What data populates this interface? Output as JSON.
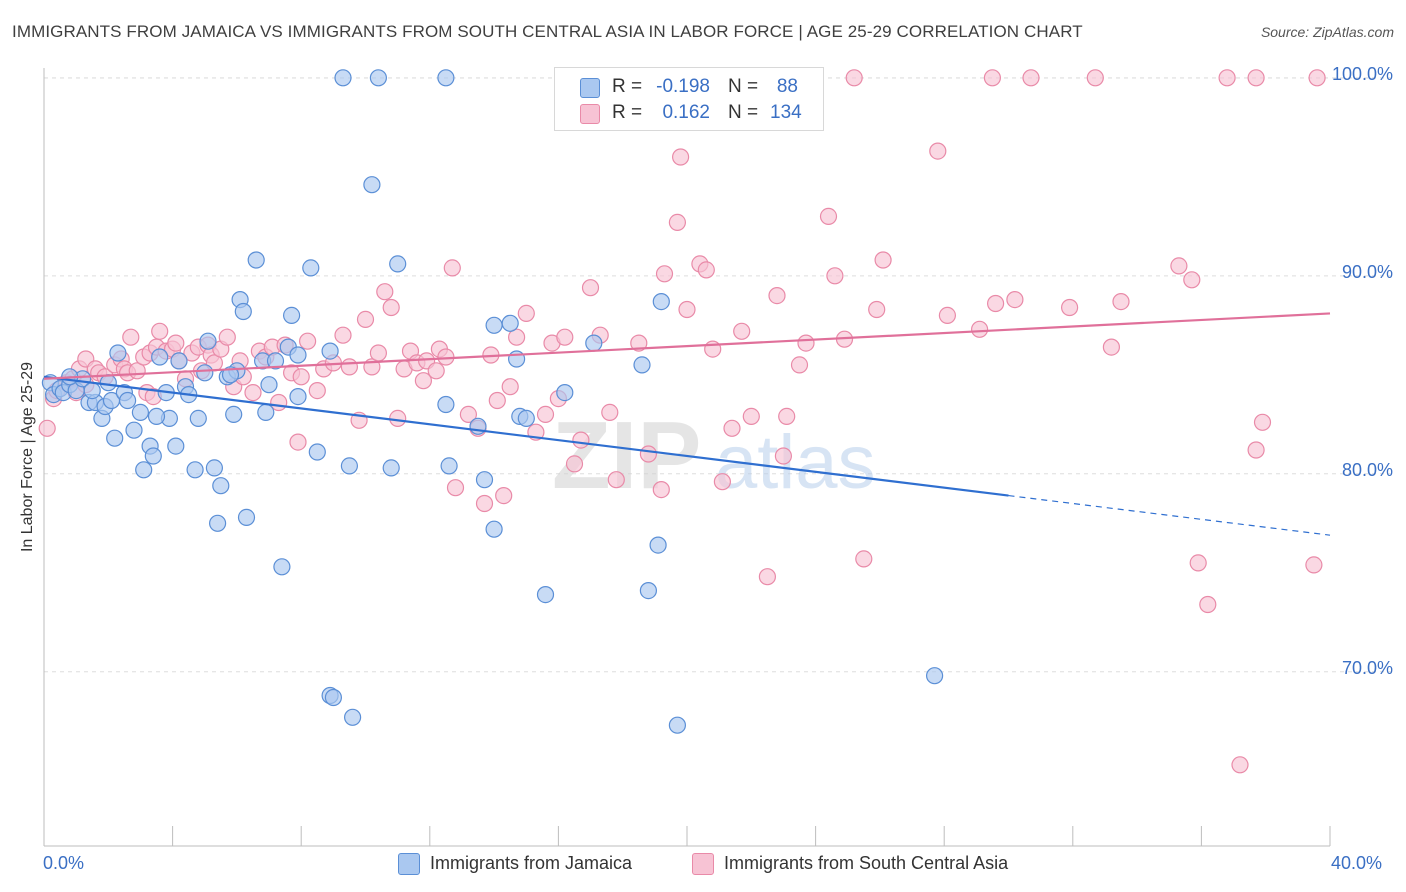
{
  "title": "IMMIGRANTS FROM JAMAICA VS IMMIGRANTS FROM SOUTH CENTRAL ASIA IN LABOR FORCE | AGE 25-29 CORRELATION CHART",
  "source": "Source: ZipAtlas.com",
  "watermark": {
    "zip": "ZIP",
    "atlas": "atlas"
  },
  "legend": {
    "r_label": "R =",
    "n_label": "N =",
    "rows": [
      {
        "r": "-0.198",
        "n": "88"
      },
      {
        "r": "0.162",
        "n": "134"
      }
    ]
  },
  "colors": {
    "blue_fill": "#aac8f0",
    "blue_stroke": "#5b8fd6",
    "blue_line": "#2f6fd0",
    "pink_fill": "#f7c3d4",
    "pink_stroke": "#e98aa8",
    "pink_line": "#e0709a",
    "tick_text": "#3a6fc4",
    "grid": "#dddddd"
  },
  "chart_data": {
    "type": "scatter",
    "title": "IMMIGRANTS FROM JAMAICA VS IMMIGRANTS FROM SOUTH CENTRAL ASIA IN LABOR FORCE | AGE 25-29 CORRELATION CHART",
    "xlabel": "",
    "ylabel": "In Labor Force | Age 25-29",
    "xlim": [
      0,
      40
    ],
    "ylim": [
      61.2,
      100.8
    ],
    "x_tick_labels": [
      "0.0%",
      "40.0%"
    ],
    "y_ticks": [
      70,
      80,
      90,
      100
    ],
    "y_tick_labels": [
      "70.0%",
      "80.0%",
      "90.0%",
      "100.0%"
    ],
    "grid": true,
    "legend_position": "top-center",
    "series": [
      {
        "name": "Immigrants from Jamaica",
        "color": "#aac8f0",
        "r": -0.198,
        "n": 88,
        "trend": {
          "x0": 0,
          "y0": 84.9,
          "x1": 30,
          "y1": 78.9,
          "dashed_to_x": 40,
          "dashed_to_y": 76.9
        },
        "points": [
          [
            0.2,
            84.6
          ],
          [
            0.3,
            84.0
          ],
          [
            0.5,
            84.3
          ],
          [
            0.6,
            84.1
          ],
          [
            0.8,
            84.5
          ],
          [
            1.0,
            84.2
          ],
          [
            1.2,
            84.8
          ],
          [
            1.4,
            83.6
          ],
          [
            1.6,
            83.6
          ],
          [
            1.8,
            82.8
          ],
          [
            1.9,
            83.4
          ],
          [
            2.1,
            83.7
          ],
          [
            2.2,
            81.8
          ],
          [
            2.3,
            86.1
          ],
          [
            2.5,
            84.1
          ],
          [
            2.6,
            83.7
          ],
          [
            2.8,
            82.2
          ],
          [
            3.0,
            83.1
          ],
          [
            3.1,
            80.2
          ],
          [
            3.3,
            81.4
          ],
          [
            3.4,
            80.9
          ],
          [
            3.6,
            85.9
          ],
          [
            3.8,
            84.1
          ],
          [
            3.9,
            82.8
          ],
          [
            4.1,
            81.4
          ],
          [
            4.2,
            85.7
          ],
          [
            4.4,
            84.4
          ],
          [
            4.5,
            84.0
          ],
          [
            4.7,
            80.2
          ],
          [
            4.8,
            82.8
          ],
          [
            5.0,
            85.1
          ],
          [
            5.1,
            86.7
          ],
          [
            5.3,
            80.3
          ],
          [
            5.4,
            77.5
          ],
          [
            5.5,
            79.4
          ],
          [
            5.7,
            84.9
          ],
          [
            5.9,
            83.0
          ],
          [
            6.0,
            85.2
          ],
          [
            6.1,
            88.8
          ],
          [
            6.2,
            88.2
          ],
          [
            6.3,
            77.8
          ],
          [
            6.6,
            90.8
          ],
          [
            6.8,
            85.7
          ],
          [
            6.9,
            83.1
          ],
          [
            7.0,
            84.5
          ],
          [
            7.2,
            85.7
          ],
          [
            7.4,
            75.3
          ],
          [
            7.6,
            86.4
          ],
          [
            7.7,
            88.0
          ],
          [
            7.9,
            86.0
          ],
          [
            7.9,
            83.9
          ],
          [
            8.3,
            90.4
          ],
          [
            8.5,
            81.1
          ],
          [
            8.9,
            68.8
          ],
          [
            8.9,
            86.2
          ],
          [
            9.0,
            68.7
          ],
          [
            9.3,
            100.0
          ],
          [
            9.5,
            80.4
          ],
          [
            9.6,
            67.7
          ],
          [
            10.2,
            94.6
          ],
          [
            10.4,
            100.0
          ],
          [
            10.8,
            80.3
          ],
          [
            11.0,
            90.6
          ],
          [
            12.5,
            100.0
          ],
          [
            12.5,
            83.5
          ],
          [
            12.6,
            80.4
          ],
          [
            13.5,
            82.4
          ],
          [
            13.7,
            79.7
          ],
          [
            14.0,
            87.5
          ],
          [
            14.0,
            77.2
          ],
          [
            14.5,
            87.6
          ],
          [
            14.7,
            85.8
          ],
          [
            14.8,
            82.9
          ],
          [
            15.0,
            82.8
          ],
          [
            15.6,
            73.9
          ],
          [
            16.2,
            84.1
          ],
          [
            17.1,
            86.6
          ],
          [
            18.6,
            85.5
          ],
          [
            18.8,
            74.1
          ],
          [
            19.1,
            76.4
          ],
          [
            19.2,
            88.7
          ],
          [
            19.7,
            67.3
          ],
          [
            27.7,
            69.8
          ],
          [
            2.0,
            84.6
          ],
          [
            0.8,
            84.9
          ],
          [
            3.5,
            82.9
          ],
          [
            5.8,
            85.0
          ],
          [
            1.5,
            84.2
          ]
        ]
      },
      {
        "name": "Immigrants from South Central Asia",
        "color": "#f7c3d4",
        "r": 0.162,
        "n": 134,
        "trend": {
          "x0": 0,
          "y0": 84.8,
          "x1": 40,
          "y1": 88.1
        },
        "points": [
          [
            0.1,
            82.3
          ],
          [
            0.3,
            83.8
          ],
          [
            0.4,
            84.2
          ],
          [
            0.7,
            84.6
          ],
          [
            0.9,
            84.8
          ],
          [
            1.0,
            84.1
          ],
          [
            1.1,
            85.3
          ],
          [
            1.3,
            84.5
          ],
          [
            1.3,
            85.8
          ],
          [
            1.6,
            85.3
          ],
          [
            1.7,
            85.1
          ],
          [
            1.9,
            84.9
          ],
          [
            2.2,
            85.5
          ],
          [
            2.4,
            85.8
          ],
          [
            2.5,
            85.3
          ],
          [
            2.6,
            85.1
          ],
          [
            2.7,
            86.9
          ],
          [
            2.9,
            85.2
          ],
          [
            3.1,
            85.9
          ],
          [
            3.2,
            84.1
          ],
          [
            3.3,
            86.1
          ],
          [
            3.4,
            83.9
          ],
          [
            3.5,
            86.4
          ],
          [
            3.6,
            87.2
          ],
          [
            3.8,
            86.2
          ],
          [
            4.0,
            86.3
          ],
          [
            4.1,
            86.6
          ],
          [
            4.2,
            85.7
          ],
          [
            4.4,
            84.8
          ],
          [
            4.6,
            86.1
          ],
          [
            4.8,
            86.4
          ],
          [
            4.9,
            85.2
          ],
          [
            5.1,
            86.5
          ],
          [
            5.2,
            86.0
          ],
          [
            5.3,
            85.6
          ],
          [
            5.5,
            86.3
          ],
          [
            5.7,
            86.9
          ],
          [
            5.9,
            84.4
          ],
          [
            6.1,
            85.7
          ],
          [
            6.2,
            84.9
          ],
          [
            6.5,
            84.1
          ],
          [
            6.7,
            86.2
          ],
          [
            6.9,
            85.9
          ],
          [
            7.1,
            86.4
          ],
          [
            7.3,
            83.6
          ],
          [
            7.5,
            86.5
          ],
          [
            7.7,
            85.1
          ],
          [
            7.9,
            81.6
          ],
          [
            8.0,
            84.9
          ],
          [
            8.2,
            86.7
          ],
          [
            8.5,
            84.2
          ],
          [
            8.7,
            85.3
          ],
          [
            9.0,
            85.6
          ],
          [
            9.3,
            87.0
          ],
          [
            9.5,
            85.4
          ],
          [
            9.8,
            82.7
          ],
          [
            10.0,
            87.8
          ],
          [
            10.2,
            85.4
          ],
          [
            10.4,
            86.1
          ],
          [
            10.6,
            89.2
          ],
          [
            10.8,
            88.4
          ],
          [
            11.0,
            82.8
          ],
          [
            11.2,
            85.3
          ],
          [
            11.4,
            86.2
          ],
          [
            11.6,
            85.6
          ],
          [
            11.8,
            84.7
          ],
          [
            11.9,
            85.7
          ],
          [
            12.2,
            85.2
          ],
          [
            12.3,
            86.3
          ],
          [
            12.5,
            85.9
          ],
          [
            12.7,
            90.4
          ],
          [
            12.8,
            79.3
          ],
          [
            13.2,
            83.0
          ],
          [
            13.5,
            82.3
          ],
          [
            13.7,
            78.5
          ],
          [
            13.9,
            86.0
          ],
          [
            14.1,
            83.7
          ],
          [
            14.3,
            78.9
          ],
          [
            14.5,
            84.4
          ],
          [
            14.7,
            86.9
          ],
          [
            15.0,
            88.1
          ],
          [
            15.3,
            82.1
          ],
          [
            15.6,
            83.0
          ],
          [
            15.8,
            86.6
          ],
          [
            16.0,
            83.8
          ],
          [
            16.2,
            86.9
          ],
          [
            16.5,
            80.5
          ],
          [
            16.7,
            81.7
          ],
          [
            17.0,
            89.4
          ],
          [
            17.3,
            87.0
          ],
          [
            17.6,
            83.1
          ],
          [
            17.8,
            79.7
          ],
          [
            18.5,
            86.6
          ],
          [
            18.8,
            81.0
          ],
          [
            19.2,
            79.2
          ],
          [
            19.3,
            90.1
          ],
          [
            19.7,
            92.7
          ],
          [
            19.8,
            96.0
          ],
          [
            20.0,
            88.3
          ],
          [
            20.4,
            90.6
          ],
          [
            20.6,
            90.3
          ],
          [
            20.8,
            86.3
          ],
          [
            21.1,
            79.6
          ],
          [
            21.4,
            82.3
          ],
          [
            21.7,
            87.2
          ],
          [
            22.0,
            82.9
          ],
          [
            22.5,
            74.8
          ],
          [
            22.8,
            89.0
          ],
          [
            23.0,
            80.9
          ],
          [
            23.1,
            82.9
          ],
          [
            23.5,
            85.5
          ],
          [
            23.7,
            86.6
          ],
          [
            24.4,
            93.0
          ],
          [
            24.6,
            90.0
          ],
          [
            24.9,
            86.8
          ],
          [
            25.2,
            100.0
          ],
          [
            25.5,
            75.7
          ],
          [
            25.9,
            88.3
          ],
          [
            26.1,
            90.8
          ],
          [
            27.8,
            96.3
          ],
          [
            28.1,
            88.0
          ],
          [
            29.1,
            87.3
          ],
          [
            29.5,
            100.0
          ],
          [
            29.6,
            88.6
          ],
          [
            30.2,
            88.8
          ],
          [
            30.7,
            100.0
          ],
          [
            31.9,
            88.4
          ],
          [
            32.7,
            100.0
          ],
          [
            33.2,
            86.4
          ],
          [
            33.5,
            88.7
          ],
          [
            35.3,
            90.5
          ],
          [
            35.7,
            89.8
          ],
          [
            35.9,
            75.5
          ],
          [
            36.2,
            73.4
          ],
          [
            36.8,
            100.0
          ],
          [
            37.2,
            65.3
          ],
          [
            37.7,
            100.0
          ],
          [
            37.7,
            81.2
          ],
          [
            37.9,
            82.6
          ],
          [
            39.5,
            75.4
          ],
          [
            39.6,
            100.0
          ]
        ]
      }
    ]
  },
  "bottom_legend": [
    "Immigrants from Jamaica",
    "Immigrants from South Central Asia"
  ]
}
